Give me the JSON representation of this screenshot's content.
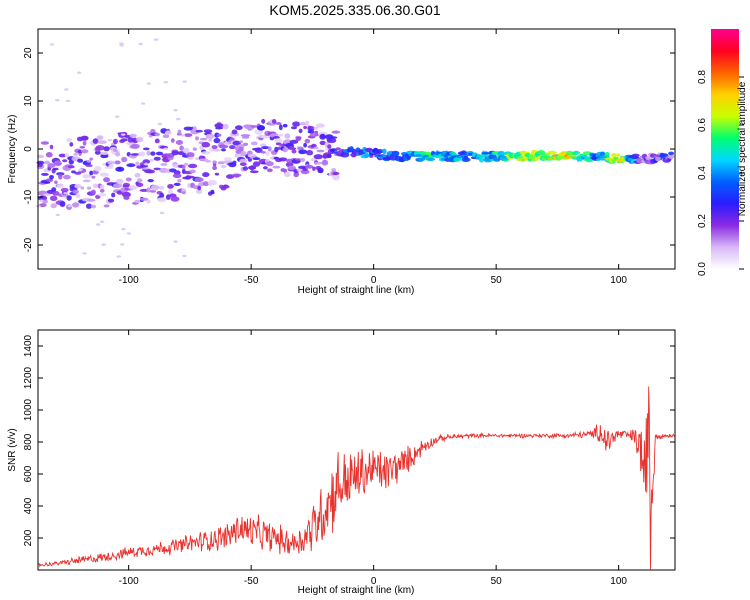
{
  "title": "KOM5.2025.335.06.30.G01",
  "colors": {
    "snr_line": "#e8322e",
    "axis": "#000000",
    "colormap": [
      "#ffffff",
      "#d8b8f8",
      "#8a2be2",
      "#2a1cff",
      "#0060ff",
      "#00d8ff",
      "#00ff70",
      "#c8ff00",
      "#ffd000",
      "#ff6000",
      "#ff0020",
      "#ff0090"
    ]
  },
  "chart_data": [
    {
      "type": "heatmap",
      "name": "spectrogram",
      "xlabel": "Height of straight line (km)",
      "ylabel": "Frequency (Hz)",
      "xlim": [
        -137,
        123
      ],
      "ylim": [
        -25,
        25
      ],
      "xticks": [
        -100,
        -50,
        0,
        50,
        100
      ],
      "xtick_labels": [
        "-100",
        "-50",
        "0",
        "50",
        "100"
      ],
      "yticks": [
        -20,
        -10,
        0,
        10,
        20
      ],
      "ytick_labels": [
        "-20",
        "-10",
        "0",
        "10",
        "20"
      ],
      "colorbar": {
        "label": "Normalized spectral amplitude",
        "range": [
          0,
          1
        ],
        "ticks": [
          0.0,
          0.2,
          0.4,
          0.6,
          0.8
        ],
        "tick_labels": [
          "0.0",
          "0.2",
          "0.4",
          "0.6",
          "0.8"
        ]
      },
      "ridge": {
        "x": [
          -137,
          -120,
          -100,
          -80,
          -60,
          -45,
          -35,
          -25,
          -15,
          0,
          10,
          20,
          40,
          60,
          80,
          90,
          100,
          110,
          123
        ],
        "freq": [
          -6,
          -5,
          -4,
          -3,
          -2,
          1,
          0,
          0,
          -0.5,
          -1,
          -1.5,
          -1.5,
          -1.5,
          -1.5,
          -1.5,
          -1.5,
          -2,
          -2,
          -1.5
        ],
        "amplitude": [
          0.15,
          0.15,
          0.15,
          0.15,
          0.15,
          0.15,
          0.2,
          0.2,
          0.4,
          0.45,
          0.45,
          0.6,
          0.5,
          0.7,
          0.8,
          0.5,
          0.8,
          0.3,
          0.35
        ]
      }
    },
    {
      "type": "line",
      "name": "snr",
      "xlabel": "Height of straight line (km)",
      "ylabel": "SNR (v/v)",
      "xlim": [
        -137,
        123
      ],
      "ylim": [
        0,
        1500
      ],
      "xticks": [
        -100,
        -50,
        0,
        50,
        100
      ],
      "xtick_labels": [
        "-100",
        "-50",
        "0",
        "50",
        "100"
      ],
      "yticks": [
        200,
        400,
        600,
        800,
        1000,
        1200,
        1400
      ],
      "ytick_labels": [
        "200",
        "400",
        "600",
        "800",
        "1000",
        "1200",
        "1400"
      ],
      "x": [
        -137,
        -130,
        -120,
        -110,
        -100,
        -90,
        -80,
        -70,
        -60,
        -55,
        -50,
        -45,
        -40,
        -35,
        -30,
        -25,
        -20,
        -15,
        -10,
        -5,
        0,
        5,
        10,
        15,
        20,
        25,
        30,
        40,
        50,
        60,
        70,
        80,
        90,
        92,
        95,
        100,
        105,
        108,
        110,
        111,
        112,
        113,
        115,
        120,
        123
      ],
      "y": [
        30,
        40,
        60,
        80,
        110,
        130,
        150,
        180,
        210,
        260,
        240,
        220,
        200,
        170,
        180,
        260,
        380,
        520,
        560,
        600,
        630,
        610,
        650,
        700,
        770,
        810,
        830,
        840,
        840,
        840,
        840,
        840,
        850,
        880,
        800,
        850,
        840,
        800,
        700,
        400,
        1100,
        300,
        840,
        840,
        840
      ],
      "noise_amplitude": [
        15,
        15,
        30,
        35,
        40,
        50,
        60,
        80,
        100,
        130,
        130,
        120,
        110,
        100,
        110,
        200,
        250,
        280,
        230,
        200,
        170,
        160,
        130,
        90,
        60,
        30,
        20,
        15,
        15,
        15,
        15,
        20,
        30,
        100,
        120,
        40,
        40,
        150,
        300,
        500,
        500,
        500,
        30,
        15,
        15
      ]
    }
  ]
}
